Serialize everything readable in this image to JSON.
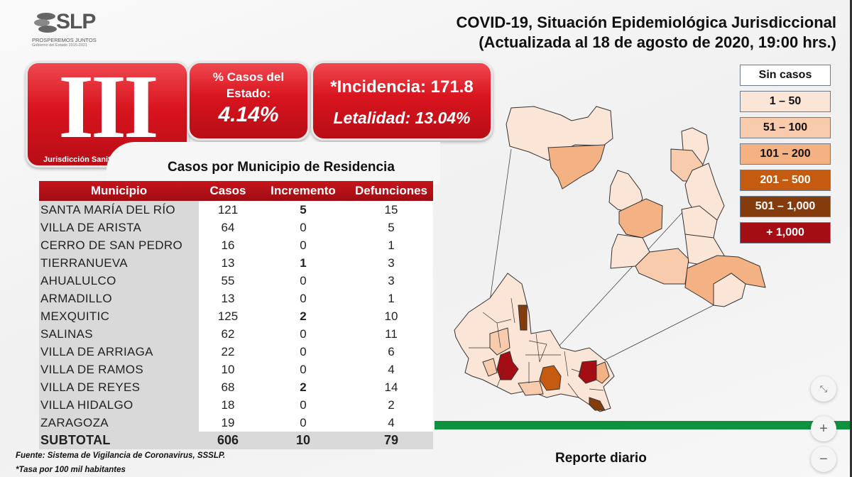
{
  "logo": {
    "brand": "SLP",
    "tagline": "PROSPEREMOS JUNTOS",
    "subtitle": "Gobierno del Estado 2015-2021"
  },
  "header": {
    "line1": "COVID-19, Situación Epidemiológica Jurisdiccional",
    "line2": "(Actualizada al 18 de agosto de 2020, 19:00 hrs.)"
  },
  "jurisdiction": {
    "numeral": "III",
    "label": "Jurisdicción Sanitaria"
  },
  "state_share": {
    "label": "% Casos del Estado:",
    "value": "4.14%"
  },
  "rates": {
    "incidence": "*Incidencia: 171.8",
    "lethality": "Letalidad: 13.04%"
  },
  "table": {
    "title": "Casos por Municipio  de Residencia",
    "headers": [
      "Municipio",
      "Casos",
      "Incremento",
      "Defunciones"
    ],
    "rows": [
      [
        "SANTA MARÍA DEL RÍO",
        "121",
        "5",
        "15"
      ],
      [
        "VILLA DE ARISTA",
        "64",
        "0",
        "5"
      ],
      [
        "CERRO DE SAN PEDRO",
        "16",
        "0",
        "1"
      ],
      [
        "TIERRANUEVA",
        "13",
        "1",
        "3"
      ],
      [
        "AHUALULCO",
        "55",
        "0",
        "3"
      ],
      [
        "ARMADILLO",
        "13",
        "0",
        "1"
      ],
      [
        "MEXQUITIC",
        "125",
        "2",
        "10"
      ],
      [
        "SALINAS",
        "62",
        "0",
        "11"
      ],
      [
        "VILLA DE ARRIAGA",
        "22",
        "0",
        "6"
      ],
      [
        "VILLA DE RAMOS",
        "10",
        "0",
        "4"
      ],
      [
        "VILLA DE REYES",
        "68",
        "2",
        "14"
      ],
      [
        "VILLA HIDALGO",
        "18",
        "0",
        "2"
      ],
      [
        "ZARAGOZA",
        "19",
        "0",
        "4"
      ]
    ],
    "subtotal": [
      "SUBTOTAL",
      "606",
      "10",
      "79"
    ]
  },
  "footnotes": {
    "source": "Fuente: Sistema de Vigilancia de Coronavirus, SSSLP.",
    "rate_note": "*Tasa por 100 mil habitantes"
  },
  "legend": [
    {
      "label": "Sin casos",
      "color": "#ffffff",
      "text": "#111"
    },
    {
      "label": "1 – 50",
      "color": "#fbe5d6",
      "text": "#111"
    },
    {
      "label": "51 – 100",
      "color": "#f8cbad",
      "text": "#111"
    },
    {
      "label": "101 – 200",
      "color": "#f4b183",
      "text": "#111"
    },
    {
      "label": "201 – 500",
      "color": "#c55a11",
      "text": "#fff"
    },
    {
      "label": "501 – 1,000",
      "color": "#843c0c",
      "text": "#fff"
    },
    {
      "label": "+ 1,000",
      "color": "#a50d15",
      "text": "#fff"
    }
  ],
  "footer": {
    "label": "Reporte diario"
  },
  "viewer_controls": {
    "fit_icon": "fullscreen-exit-icon",
    "zoom_in": "+",
    "zoom_out": "−"
  }
}
